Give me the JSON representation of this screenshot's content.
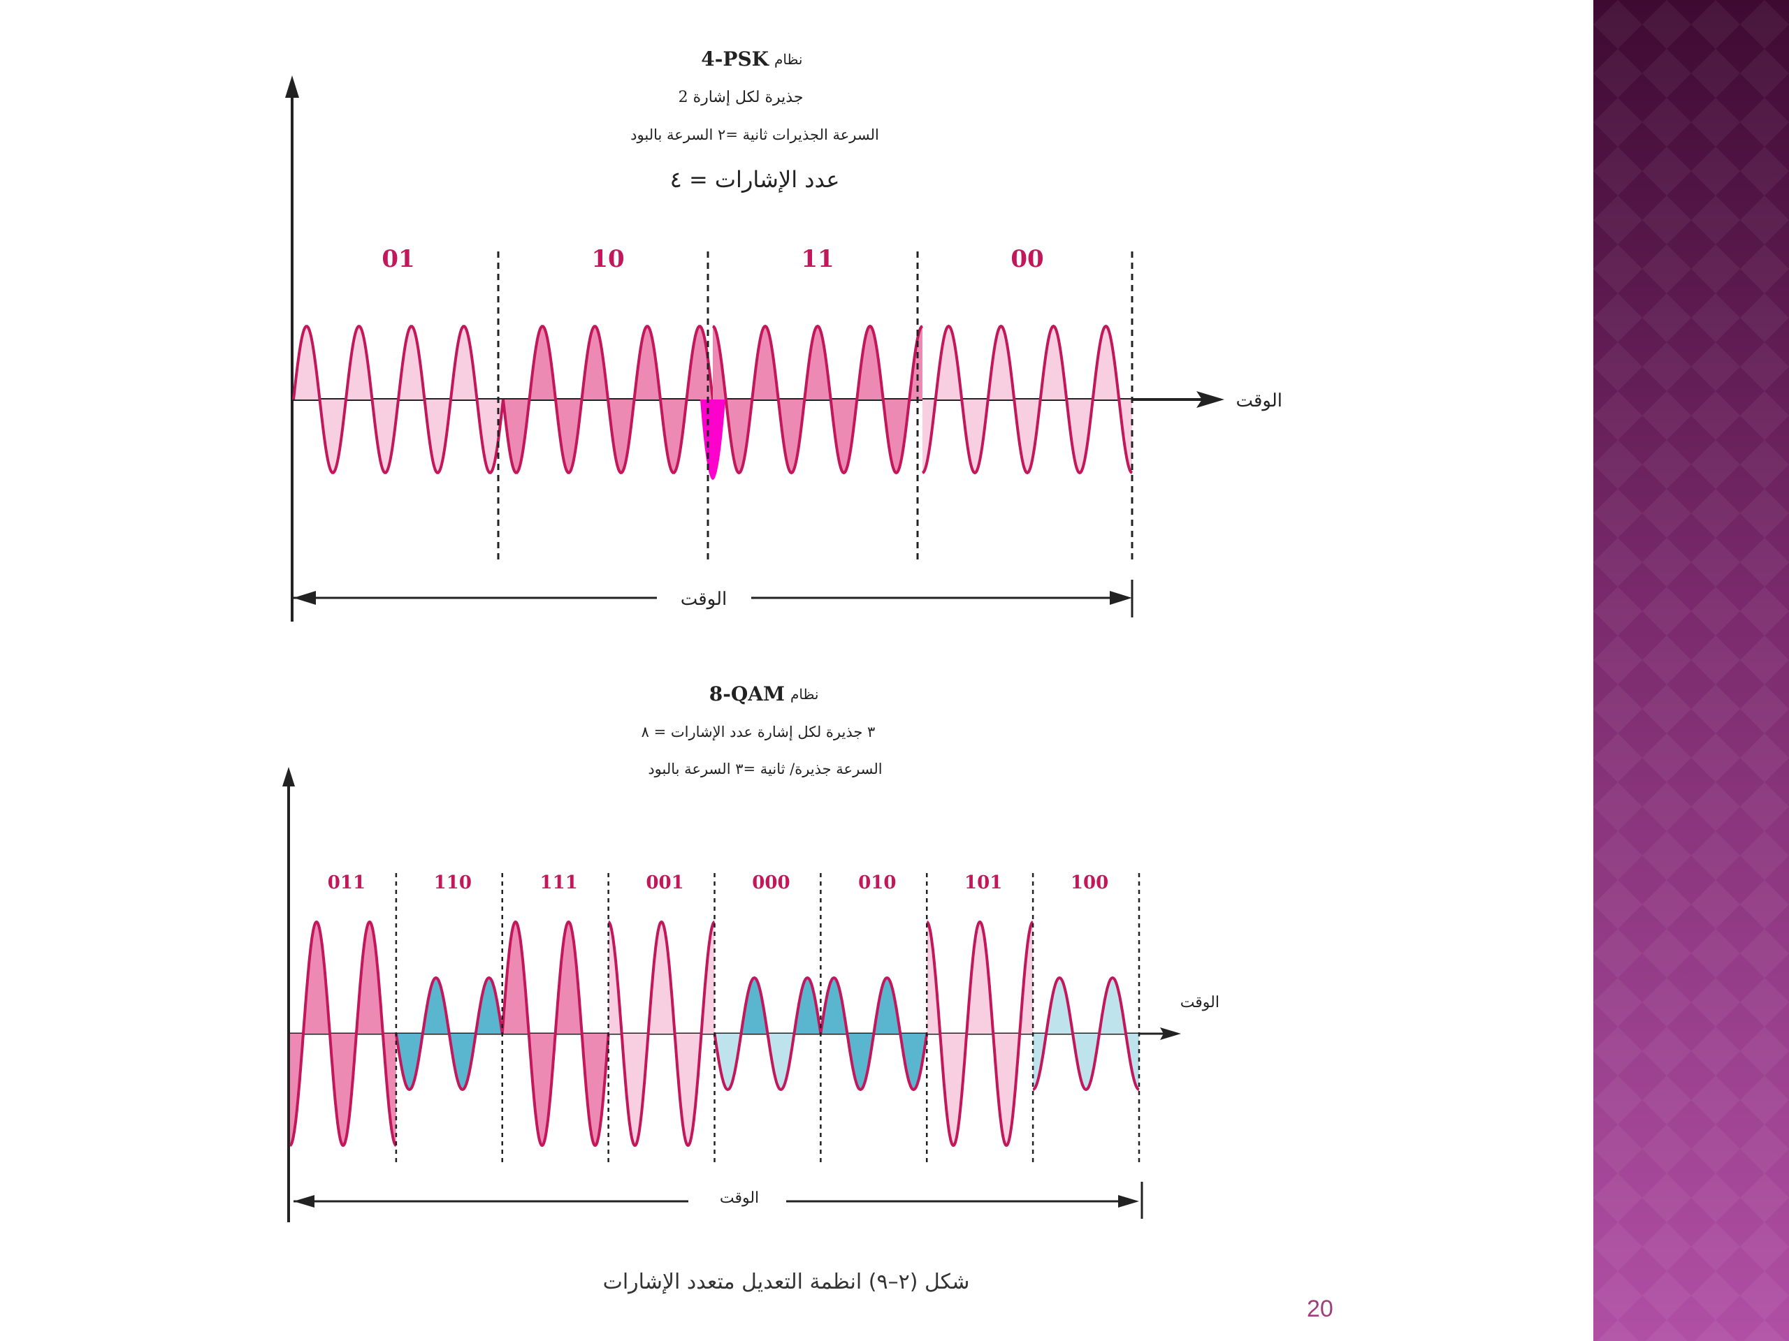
{
  "psk": {
    "title_system": "نظام",
    "title_name": "4-PSK",
    "line2": "2 جذيرة لكل إشارة",
    "line3": "السرعة الجذيرات ثانية =٢  السرعة بالبود",
    "line4": "عدد الإشارات = ٤",
    "segment_labels": [
      "01",
      "10",
      "11",
      "00"
    ],
    "axis_label": "الوقت",
    "span_label": "الوقت",
    "segments_phase": [
      0,
      180,
      90,
      270
    ],
    "cycles_per_segment": 4
  },
  "qam": {
    "title_system": "نظام",
    "title_name": "8-QAM",
    "line2": "٣ جذيرة لكل إشارة  عدد الإشارات = ٨",
    "line3": "السرعة جذيرة/ ثانية =٣  السرعة بالبود",
    "segment_labels": [
      "011",
      "110",
      "111",
      "001",
      "000",
      "010",
      "101",
      "100"
    ],
    "segment_amplitude": [
      "high",
      "low",
      "high",
      "high",
      "low",
      "low",
      "high",
      "low"
    ],
    "axis_label": "الوقت",
    "span_label": "الوقت",
    "cycles_per_segment": 2
  },
  "figure_caption": "شكل (٢–٩)  انظمة التعديل متعدد الإشارات",
  "page_number": "20",
  "colors": {
    "wave_stroke": "#c2185b",
    "fill_pink_light": "#f8cfe0",
    "fill_pink": "#ec8ab4",
    "fill_magenta": "#ff00cc",
    "fill_blue": "#5ab6cf",
    "fill_blue_light": "#bfe3ec",
    "label_pink": "#c2185b",
    "side_top": "#3e0a32",
    "side_bottom": "#b04fa4"
  }
}
